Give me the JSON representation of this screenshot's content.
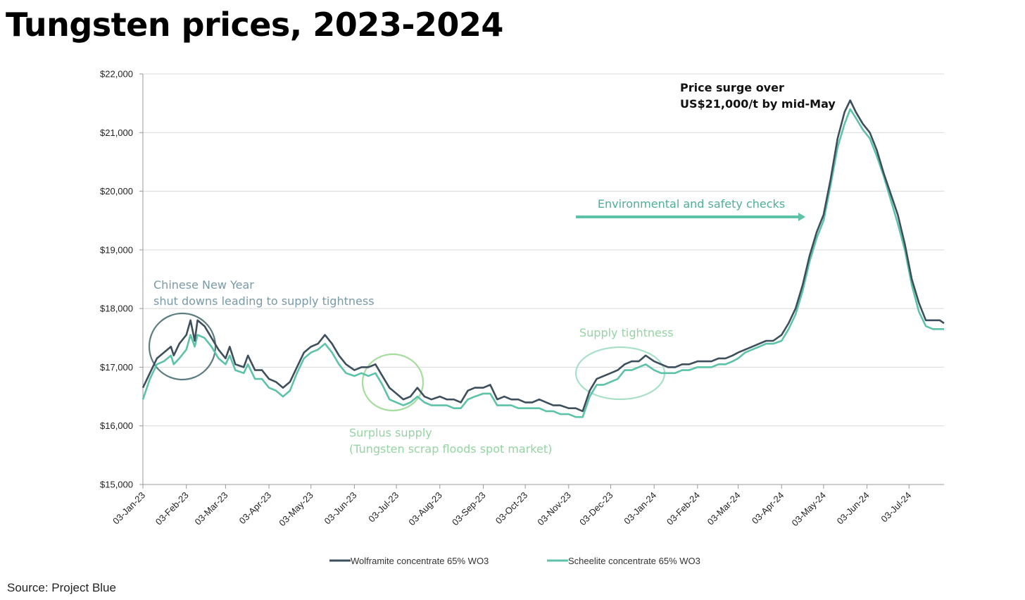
{
  "page": {
    "title": "Tungsten prices, 2023-2024",
    "source": "Source: Project Blue"
  },
  "chart_data": {
    "type": "line",
    "title": "",
    "xlabel": "",
    "ylabel": "",
    "x_ticks": [
      "03-Jan-23",
      "03-Feb-23",
      "03-Mar-23",
      "03-Apr-23",
      "03-May-23",
      "03-Jun-23",
      "03-Jul-23",
      "03-Aug-23",
      "03-Sep-23",
      "03-Oct-23",
      "03-Nov-23",
      "03-Dec-23",
      "03-Jan-24",
      "03-Feb-24",
      "03-Mar-24",
      "03-Apr-24",
      "03-May-24",
      "03-Jun-24",
      "03-Jul-24"
    ],
    "x_range": [
      "2023-01-03",
      "2024-07-28"
    ],
    "ylim": [
      15000,
      22000
    ],
    "y_ticks": [
      15000,
      16000,
      17000,
      18000,
      19000,
      20000,
      21000,
      22000
    ],
    "y_tick_labels": [
      "$15,000",
      "$16,000",
      "$17,000",
      "$18,000",
      "$19,000",
      "$20,000",
      "$21,000",
      "$22,000"
    ],
    "grid": "horizontal",
    "legend_position": "bottom-center",
    "series": [
      {
        "name": "Wolframite concentrate 65% WO3",
        "color": "#3d4f5c",
        "points": [
          [
            "2023-01-03",
            16650
          ],
          [
            "2023-01-08",
            16900
          ],
          [
            "2023-01-13",
            17150
          ],
          [
            "2023-01-18",
            17250
          ],
          [
            "2023-01-23",
            17350
          ],
          [
            "2023-01-25",
            17200
          ],
          [
            "2023-01-29",
            17400
          ],
          [
            "2023-02-03",
            17550
          ],
          [
            "2023-02-06",
            17800
          ],
          [
            "2023-02-09",
            17450
          ],
          [
            "2023-02-11",
            17800
          ],
          [
            "2023-02-16",
            17700
          ],
          [
            "2023-02-21",
            17500
          ],
          [
            "2023-02-26",
            17300
          ],
          [
            "2023-03-03",
            17150
          ],
          [
            "2023-03-06",
            17350
          ],
          [
            "2023-03-10",
            17050
          ],
          [
            "2023-03-16",
            17000
          ],
          [
            "2023-03-19",
            17200
          ],
          [
            "2023-03-24",
            16950
          ],
          [
            "2023-03-29",
            16950
          ],
          [
            "2023-04-03",
            16800
          ],
          [
            "2023-04-08",
            16750
          ],
          [
            "2023-04-13",
            16650
          ],
          [
            "2023-04-18",
            16750
          ],
          [
            "2023-04-23",
            17000
          ],
          [
            "2023-04-28",
            17250
          ],
          [
            "2023-05-03",
            17350
          ],
          [
            "2023-05-08",
            17400
          ],
          [
            "2023-05-13",
            17550
          ],
          [
            "2023-05-18",
            17400
          ],
          [
            "2023-05-23",
            17200
          ],
          [
            "2023-05-28",
            17050
          ],
          [
            "2023-06-03",
            16950
          ],
          [
            "2023-06-08",
            17000
          ],
          [
            "2023-06-13",
            17000
          ],
          [
            "2023-06-18",
            17050
          ],
          [
            "2023-06-23",
            16850
          ],
          [
            "2023-06-28",
            16650
          ],
          [
            "2023-07-03",
            16550
          ],
          [
            "2023-07-08",
            16450
          ],
          [
            "2023-07-13",
            16500
          ],
          [
            "2023-07-18",
            16650
          ],
          [
            "2023-07-23",
            16500
          ],
          [
            "2023-07-28",
            16450
          ],
          [
            "2023-08-03",
            16500
          ],
          [
            "2023-08-08",
            16450
          ],
          [
            "2023-08-13",
            16450
          ],
          [
            "2023-08-18",
            16400
          ],
          [
            "2023-08-23",
            16600
          ],
          [
            "2023-08-28",
            16650
          ],
          [
            "2023-09-03",
            16650
          ],
          [
            "2023-09-08",
            16700
          ],
          [
            "2023-09-13",
            16450
          ],
          [
            "2023-09-18",
            16500
          ],
          [
            "2023-09-23",
            16450
          ],
          [
            "2023-09-28",
            16450
          ],
          [
            "2023-10-03",
            16400
          ],
          [
            "2023-10-08",
            16400
          ],
          [
            "2023-10-13",
            16450
          ],
          [
            "2023-10-18",
            16400
          ],
          [
            "2023-10-23",
            16350
          ],
          [
            "2023-10-28",
            16350
          ],
          [
            "2023-11-03",
            16300
          ],
          [
            "2023-11-08",
            16300
          ],
          [
            "2023-11-13",
            16250
          ],
          [
            "2023-11-18",
            16600
          ],
          [
            "2023-11-23",
            16800
          ],
          [
            "2023-11-28",
            16850
          ],
          [
            "2023-12-03",
            16900
          ],
          [
            "2023-12-08",
            16950
          ],
          [
            "2023-12-13",
            17050
          ],
          [
            "2023-12-18",
            17100
          ],
          [
            "2023-12-23",
            17100
          ],
          [
            "2023-12-28",
            17200
          ],
          [
            "2024-01-03",
            17100
          ],
          [
            "2024-01-08",
            17050
          ],
          [
            "2024-01-13",
            17000
          ],
          [
            "2024-01-18",
            17000
          ],
          [
            "2024-01-23",
            17050
          ],
          [
            "2024-01-28",
            17050
          ],
          [
            "2024-02-03",
            17100
          ],
          [
            "2024-02-08",
            17100
          ],
          [
            "2024-02-13",
            17100
          ],
          [
            "2024-02-18",
            17150
          ],
          [
            "2024-02-23",
            17150
          ],
          [
            "2024-02-28",
            17200
          ],
          [
            "2024-03-03",
            17250
          ],
          [
            "2024-03-08",
            17300
          ],
          [
            "2024-03-13",
            17350
          ],
          [
            "2024-03-18",
            17400
          ],
          [
            "2024-03-23",
            17450
          ],
          [
            "2024-03-28",
            17450
          ],
          [
            "2024-04-03",
            17550
          ],
          [
            "2024-04-08",
            17750
          ],
          [
            "2024-04-13",
            18000
          ],
          [
            "2024-04-18",
            18400
          ],
          [
            "2024-04-23",
            18900
          ],
          [
            "2024-04-28",
            19300
          ],
          [
            "2024-05-03",
            19600
          ],
          [
            "2024-05-08",
            20200
          ],
          [
            "2024-05-13",
            20900
          ],
          [
            "2024-05-18",
            21350
          ],
          [
            "2024-05-22",
            21550
          ],
          [
            "2024-05-26",
            21350
          ],
          [
            "2024-05-31",
            21150
          ],
          [
            "2024-06-05",
            21000
          ],
          [
            "2024-06-10",
            20700
          ],
          [
            "2024-06-15",
            20300
          ],
          [
            "2024-06-20",
            19950
          ],
          [
            "2024-06-25",
            19600
          ],
          [
            "2024-06-30",
            19100
          ],
          [
            "2024-07-05",
            18500
          ],
          [
            "2024-07-10",
            18100
          ],
          [
            "2024-07-15",
            17800
          ],
          [
            "2024-07-20",
            17800
          ],
          [
            "2024-07-25",
            17800
          ],
          [
            "2024-07-28",
            17750
          ]
        ]
      },
      {
        "name": "Scheelite concentrate 65% WO3",
        "color": "#5cc2a8",
        "points": [
          [
            "2023-01-03",
            16450
          ],
          [
            "2023-01-08",
            16800
          ],
          [
            "2023-01-13",
            17050
          ],
          [
            "2023-01-18",
            17100
          ],
          [
            "2023-01-23",
            17200
          ],
          [
            "2023-01-25",
            17050
          ],
          [
            "2023-01-29",
            17150
          ],
          [
            "2023-02-03",
            17300
          ],
          [
            "2023-02-06",
            17550
          ],
          [
            "2023-02-09",
            17350
          ],
          [
            "2023-02-11",
            17550
          ],
          [
            "2023-02-16",
            17500
          ],
          [
            "2023-02-21",
            17350
          ],
          [
            "2023-02-26",
            17150
          ],
          [
            "2023-03-03",
            17050
          ],
          [
            "2023-03-06",
            17200
          ],
          [
            "2023-03-10",
            16950
          ],
          [
            "2023-03-16",
            16900
          ],
          [
            "2023-03-19",
            17050
          ],
          [
            "2023-03-24",
            16800
          ],
          [
            "2023-03-29",
            16800
          ],
          [
            "2023-04-03",
            16650
          ],
          [
            "2023-04-08",
            16600
          ],
          [
            "2023-04-13",
            16500
          ],
          [
            "2023-04-18",
            16600
          ],
          [
            "2023-04-23",
            16900
          ],
          [
            "2023-04-28",
            17150
          ],
          [
            "2023-05-03",
            17250
          ],
          [
            "2023-05-08",
            17300
          ],
          [
            "2023-05-13",
            17400
          ],
          [
            "2023-05-18",
            17250
          ],
          [
            "2023-05-23",
            17050
          ],
          [
            "2023-05-28",
            16900
          ],
          [
            "2023-06-03",
            16850
          ],
          [
            "2023-06-08",
            16900
          ],
          [
            "2023-06-13",
            16850
          ],
          [
            "2023-06-18",
            16900
          ],
          [
            "2023-06-23",
            16700
          ],
          [
            "2023-06-28",
            16450
          ],
          [
            "2023-07-03",
            16400
          ],
          [
            "2023-07-08",
            16350
          ],
          [
            "2023-07-13",
            16400
          ],
          [
            "2023-07-18",
            16500
          ],
          [
            "2023-07-23",
            16400
          ],
          [
            "2023-07-28",
            16350
          ],
          [
            "2023-08-03",
            16350
          ],
          [
            "2023-08-08",
            16350
          ],
          [
            "2023-08-13",
            16300
          ],
          [
            "2023-08-18",
            16300
          ],
          [
            "2023-08-23",
            16450
          ],
          [
            "2023-08-28",
            16500
          ],
          [
            "2023-09-03",
            16550
          ],
          [
            "2023-09-08",
            16550
          ],
          [
            "2023-09-13",
            16350
          ],
          [
            "2023-09-18",
            16350
          ],
          [
            "2023-09-23",
            16350
          ],
          [
            "2023-09-28",
            16300
          ],
          [
            "2023-10-03",
            16300
          ],
          [
            "2023-10-08",
            16300
          ],
          [
            "2023-10-13",
            16300
          ],
          [
            "2023-10-18",
            16250
          ],
          [
            "2023-10-23",
            16250
          ],
          [
            "2023-10-28",
            16200
          ],
          [
            "2023-11-03",
            16200
          ],
          [
            "2023-11-08",
            16150
          ],
          [
            "2023-11-13",
            16150
          ],
          [
            "2023-11-18",
            16500
          ],
          [
            "2023-11-23",
            16700
          ],
          [
            "2023-11-28",
            16700
          ],
          [
            "2023-12-03",
            16750
          ],
          [
            "2023-12-08",
            16800
          ],
          [
            "2023-12-13",
            16950
          ],
          [
            "2023-12-18",
            16950
          ],
          [
            "2023-12-23",
            17000
          ],
          [
            "2023-12-28",
            17050
          ],
          [
            "2024-01-03",
            16950
          ],
          [
            "2024-01-08",
            16900
          ],
          [
            "2024-01-13",
            16900
          ],
          [
            "2024-01-18",
            16900
          ],
          [
            "2024-01-23",
            16950
          ],
          [
            "2024-01-28",
            16950
          ],
          [
            "2024-02-03",
            17000
          ],
          [
            "2024-02-08",
            17000
          ],
          [
            "2024-02-13",
            17000
          ],
          [
            "2024-02-18",
            17050
          ],
          [
            "2024-02-23",
            17050
          ],
          [
            "2024-02-28",
            17100
          ],
          [
            "2024-03-03",
            17150
          ],
          [
            "2024-03-08",
            17250
          ],
          [
            "2024-03-13",
            17300
          ],
          [
            "2024-03-18",
            17350
          ],
          [
            "2024-03-23",
            17400
          ],
          [
            "2024-03-28",
            17400
          ],
          [
            "2024-04-03",
            17450
          ],
          [
            "2024-04-08",
            17650
          ],
          [
            "2024-04-13",
            17900
          ],
          [
            "2024-04-18",
            18300
          ],
          [
            "2024-04-23",
            18800
          ],
          [
            "2024-04-28",
            19200
          ],
          [
            "2024-05-03",
            19500
          ],
          [
            "2024-05-08",
            20100
          ],
          [
            "2024-05-13",
            20750
          ],
          [
            "2024-05-18",
            21150
          ],
          [
            "2024-05-22",
            21400
          ],
          [
            "2024-05-26",
            21250
          ],
          [
            "2024-05-31",
            21050
          ],
          [
            "2024-06-05",
            20900
          ],
          [
            "2024-06-10",
            20600
          ],
          [
            "2024-06-15",
            20250
          ],
          [
            "2024-06-20",
            19850
          ],
          [
            "2024-06-25",
            19450
          ],
          [
            "2024-06-30",
            19000
          ],
          [
            "2024-07-05",
            18400
          ],
          [
            "2024-07-10",
            17950
          ],
          [
            "2024-07-15",
            17700
          ],
          [
            "2024-07-20",
            17650
          ],
          [
            "2024-07-25",
            17650
          ],
          [
            "2024-07-28",
            17650
          ]
        ]
      }
    ],
    "annotations": [
      {
        "lines": [
          "Chinese New Year",
          "shut downs leading to supply tightness"
        ],
        "color": "#7a9aa6",
        "circle_color": "#5c7c7f"
      },
      {
        "lines": [
          "Surplus supply",
          "(Tungsten scrap floods spot market)"
        ],
        "color": "#95d4a3",
        "circle_color": "#a5dd9e"
      },
      {
        "lines": [
          "Supply tightness"
        ],
        "color": "#95d4a3",
        "circle_color": "#a8e0c8"
      },
      {
        "lines": [
          "Environmental and safety checks"
        ],
        "color": "#4fae97",
        "arrow_color": "#5cc2a8"
      },
      {
        "lines": [
          "Price surge over",
          "US$21,000/t by mid-May"
        ],
        "color": "#111111"
      }
    ]
  }
}
